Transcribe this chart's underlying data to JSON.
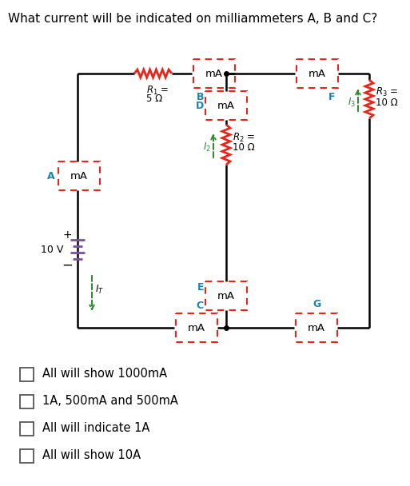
{
  "title": "What current will be indicated on milliammeters A, B and C?",
  "title_fontsize": 11,
  "background_color": "#ffffff",
  "circuit_color": "#000000",
  "red_color": "#e8251a",
  "green_color": "#2a8a2a",
  "cyan_color": "#1a85b5",
  "purple_color": "#7b4fa0",
  "options": [
    "All will show 1000mA",
    "1A, 500mA and 500mA",
    "All will indicate 1A",
    "All will show 10A"
  ]
}
